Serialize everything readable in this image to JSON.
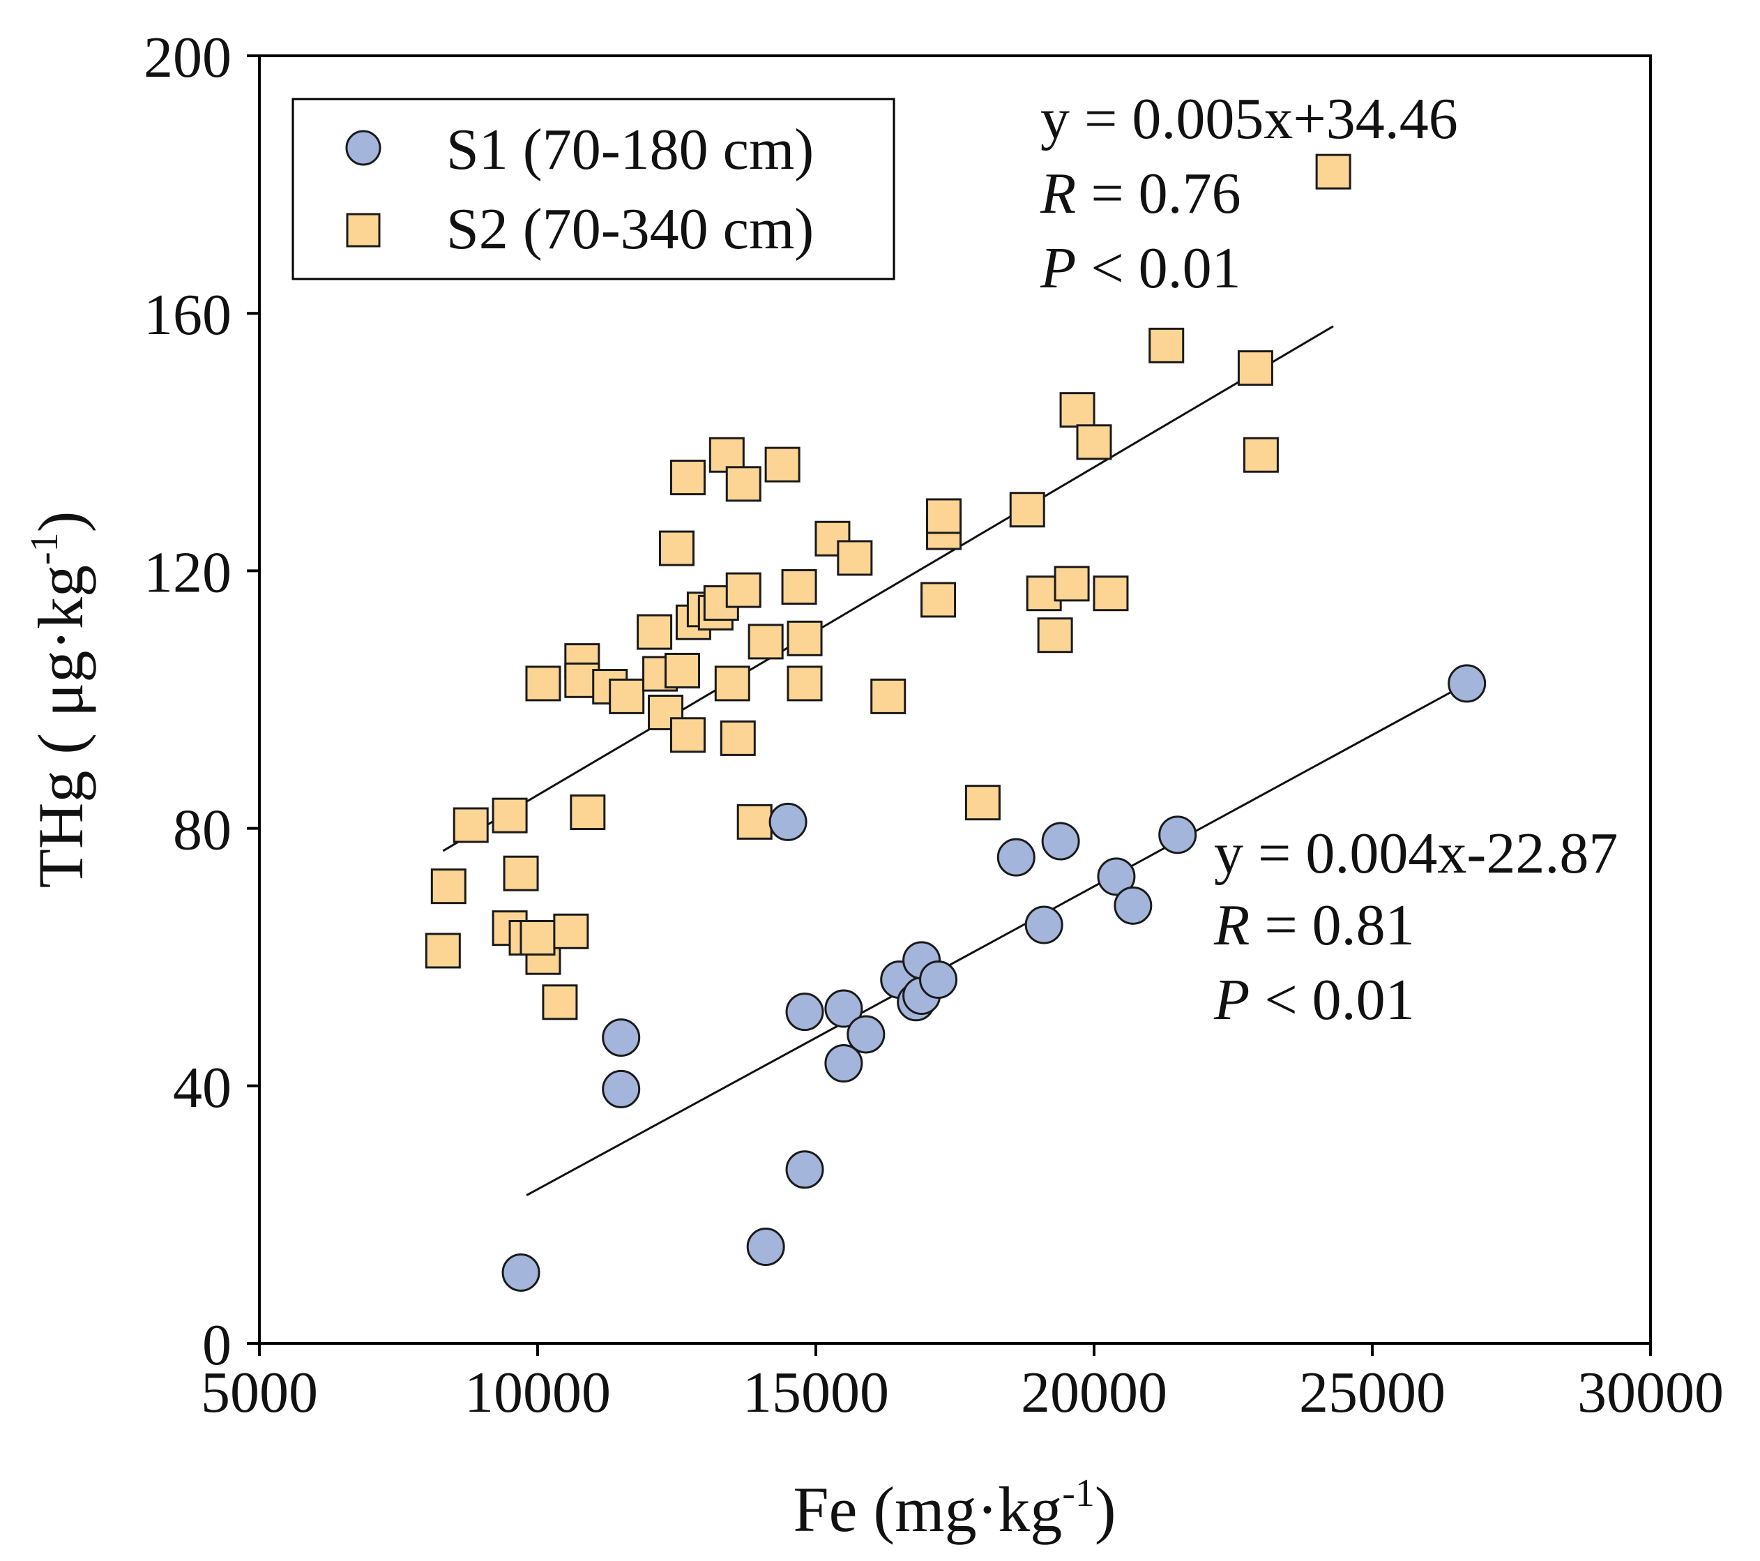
{
  "chart_data": {
    "type": "scatter",
    "xlabel": "Fe (mg·kg-1)",
    "xlabel_parts": {
      "main": "Fe (mg·kg",
      "sup": "-1",
      "close": ")"
    },
    "ylabel": "THg ( μg·kg-1)",
    "ylabel_parts": {
      "main": "THg ( μg·kg",
      "sup": "-1",
      "close": ")"
    },
    "xlim": [
      5000,
      30000
    ],
    "ylim": [
      0,
      200
    ],
    "xticks": [
      5000,
      10000,
      15000,
      20000,
      25000,
      30000
    ],
    "yticks": [
      0,
      40,
      80,
      120,
      160,
      200
    ],
    "grid": false,
    "legend_position": "top-left",
    "series": [
      {
        "name": "S1 (70-180 cm)",
        "marker": "circle",
        "color": "#a3b5da",
        "points": [
          [
            9700,
            11
          ],
          [
            11500,
            47.5
          ],
          [
            11500,
            39.5
          ],
          [
            14100,
            15
          ],
          [
            14500,
            81
          ],
          [
            14800,
            27
          ],
          [
            14800,
            51.5
          ],
          [
            15500,
            43.5
          ],
          [
            15500,
            52
          ],
          [
            15900,
            48
          ],
          [
            16500,
            56.5
          ],
          [
            16800,
            53
          ],
          [
            16900,
            54
          ],
          [
            16900,
            59.5
          ],
          [
            17200,
            56.5
          ],
          [
            18600,
            75.5
          ],
          [
            19100,
            65
          ],
          [
            19400,
            78
          ],
          [
            20400,
            72.5
          ],
          [
            20700,
            68
          ],
          [
            21500,
            79
          ],
          [
            26700,
            102.5
          ]
        ],
        "fit": {
          "equation": "y = 0.004x-22.87",
          "r_label": "R",
          "r_value": " = 0.81",
          "p_label": "P",
          "p_value": " < 0.01",
          "x_range": [
            9800,
            26700
          ],
          "y_range": [
            23,
            102.5
          ]
        }
      },
      {
        "name": "S2 (70-340 cm)",
        "marker": "square",
        "color": "#fcd594",
        "points": [
          [
            8300,
            61
          ],
          [
            8400,
            71
          ],
          [
            8800,
            80.5
          ],
          [
            9500,
            82
          ],
          [
            9500,
            64.5
          ],
          [
            9700,
            73
          ],
          [
            9800,
            63
          ],
          [
            10100,
            60
          ],
          [
            10000,
            63
          ],
          [
            10400,
            53
          ],
          [
            10600,
            64
          ],
          [
            10100,
            102.5
          ],
          [
            10800,
            106
          ],
          [
            10800,
            103
          ],
          [
            10900,
            82.5
          ],
          [
            11300,
            102
          ],
          [
            11600,
            100.5
          ],
          [
            12100,
            110.5
          ],
          [
            12200,
            104
          ],
          [
            12300,
            98
          ],
          [
            12500,
            123.5
          ],
          [
            12600,
            104.5
          ],
          [
            12700,
            134.5
          ],
          [
            12700,
            94.5
          ],
          [
            12800,
            112
          ],
          [
            13000,
            114
          ],
          [
            13200,
            113.5
          ],
          [
            13300,
            115
          ],
          [
            13400,
            138
          ],
          [
            13500,
            102.5
          ],
          [
            13600,
            94
          ],
          [
            13700,
            117
          ],
          [
            13700,
            133.5
          ],
          [
            13900,
            81
          ],
          [
            14100,
            109
          ],
          [
            14400,
            136.5
          ],
          [
            14700,
            117.5
          ],
          [
            14800,
            102.5
          ],
          [
            14800,
            109.5
          ],
          [
            15300,
            125
          ],
          [
            15700,
            122
          ],
          [
            16300,
            100.5
          ],
          [
            17200,
            115.5
          ],
          [
            17300,
            126
          ],
          [
            17300,
            128.5
          ],
          [
            18000,
            84
          ],
          [
            18800,
            129.5
          ],
          [
            19100,
            116.5
          ],
          [
            19300,
            110
          ],
          [
            19600,
            118
          ],
          [
            19700,
            145
          ],
          [
            20000,
            140
          ],
          [
            20300,
            116.5
          ],
          [
            21300,
            155
          ],
          [
            22900,
            151.5
          ],
          [
            23000,
            138
          ],
          [
            24300,
            182
          ]
        ],
        "fit": {
          "equation": "y = 0.005x+34.46",
          "r_label": "R",
          "r_value": " = 0.76",
          "p_label": "P",
          "p_value": " < 0.01",
          "x_range": [
            8300,
            24300
          ],
          "y_range": [
            76.5,
            158
          ]
        }
      }
    ]
  }
}
